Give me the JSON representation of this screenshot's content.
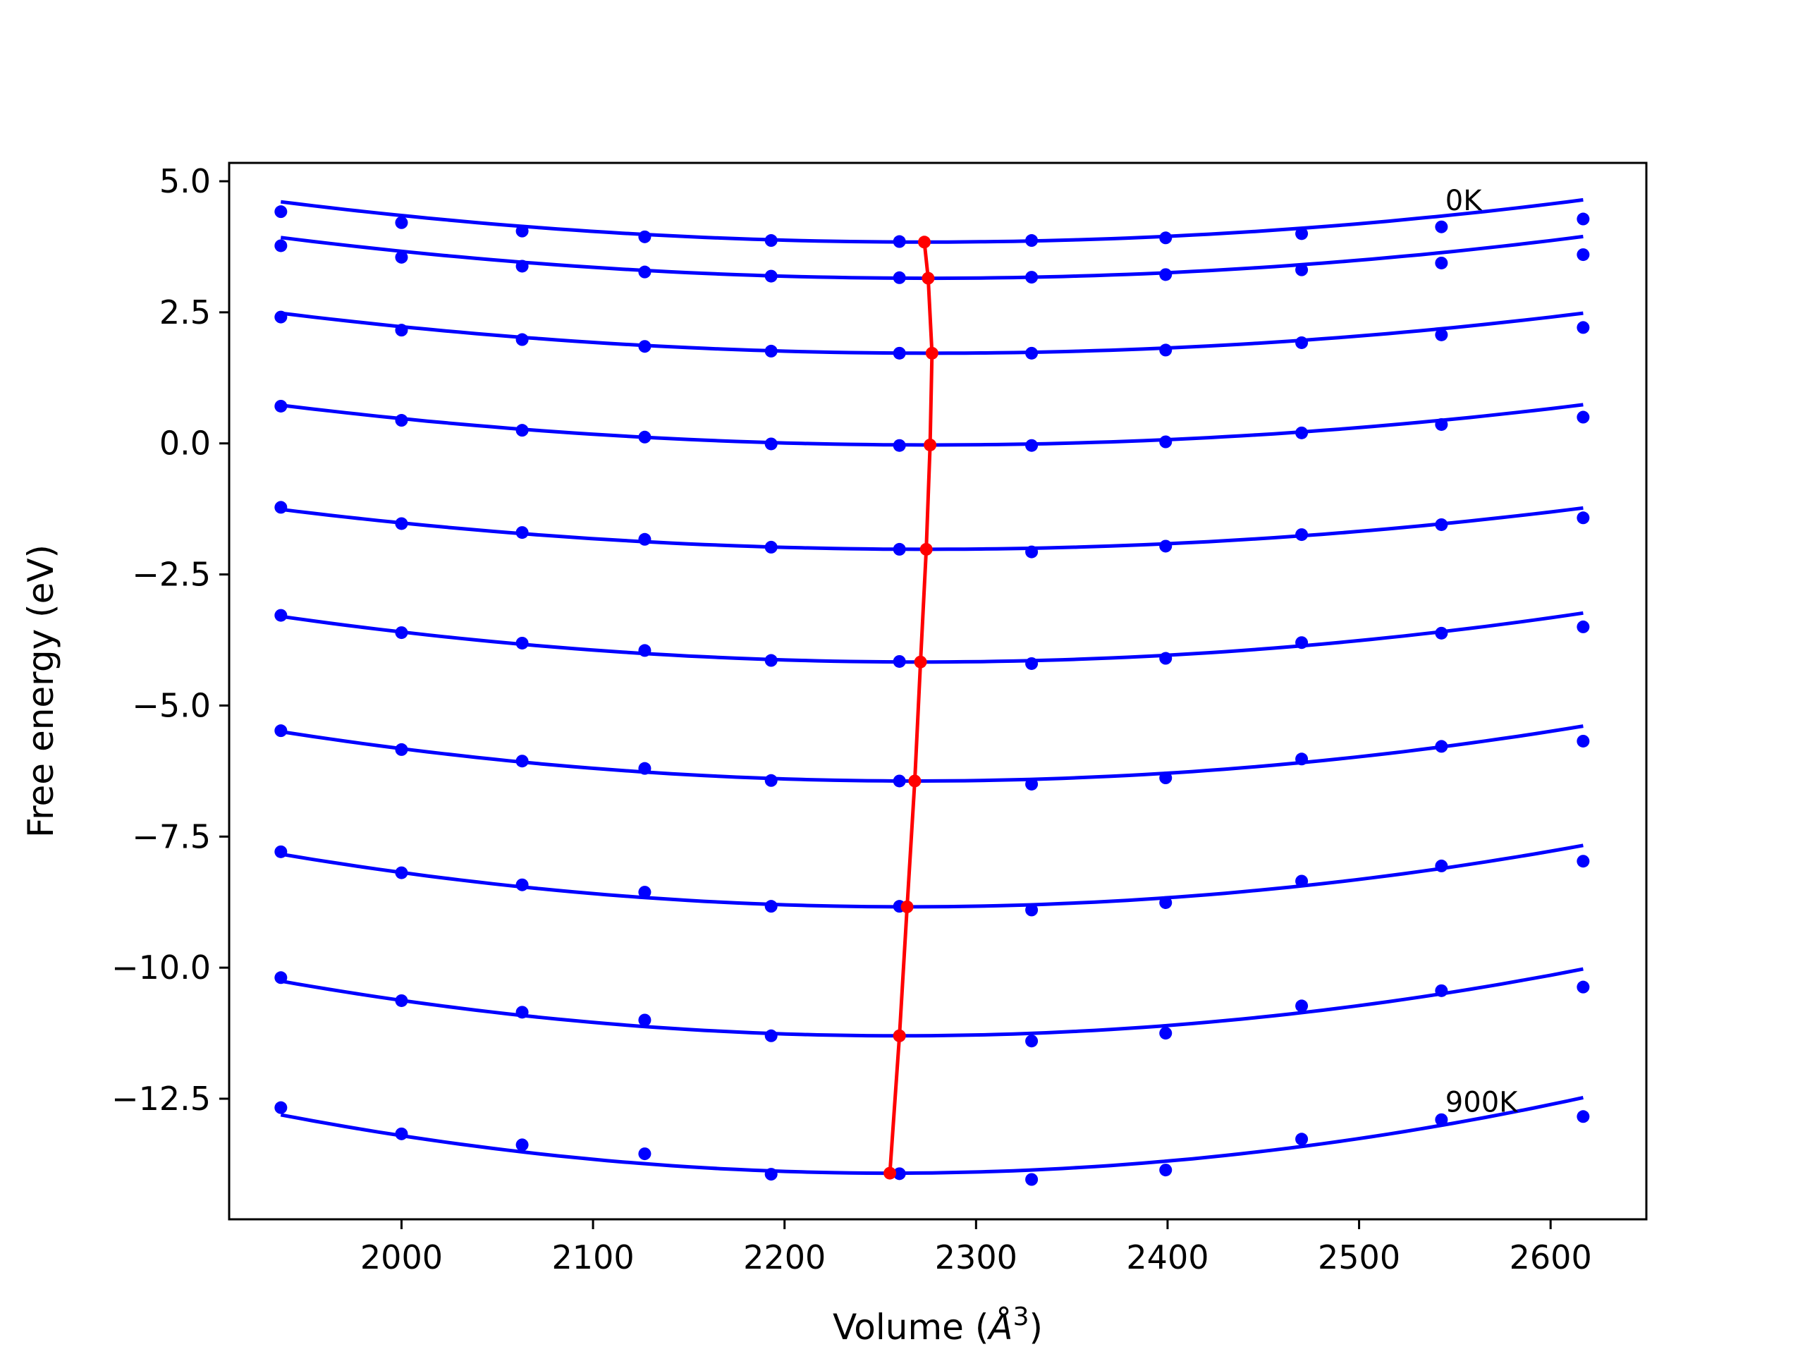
{
  "chart_data": {
    "type": "line",
    "xlabel": "Volume (Å³)",
    "xlabel_parts": {
      "text": "Volume (",
      "symbol": "Å",
      "exp": "3",
      "close": ")"
    },
    "ylabel": "Free energy (eV)",
    "xlim": [
      1910,
      2650
    ],
    "ylim": [
      -14.8,
      5.35
    ],
    "xticks": [
      2000,
      2100,
      2200,
      2300,
      2400,
      2500,
      2600
    ],
    "yticks": [
      5.0,
      2.5,
      0.0,
      -2.5,
      -5.0,
      -7.5,
      -10.0,
      -12.5
    ],
    "ytick_labels": [
      "5.0",
      "2.5",
      "0.0",
      "−2.5",
      "−5.0",
      "−7.5",
      "−10.0",
      "−12.5"
    ],
    "grid": false,
    "colors": {
      "curves": "#0000ff",
      "minima": "#ff0000"
    },
    "annotations": [
      {
        "text": "0K",
        "x": 2545,
        "y": 4.45
      },
      {
        "text": "900K",
        "x": 2545,
        "y": -12.75
      }
    ],
    "x": [
      1937,
      2000,
      2063,
      2127,
      2193,
      2260,
      2329,
      2399,
      2470,
      2543,
      2617
    ],
    "series": [
      {
        "points": [
          4.42,
          4.21,
          4.05,
          3.94,
          3.87,
          3.85,
          3.87,
          3.92,
          4.0,
          4.13,
          4.28
        ],
        "fit": {
          "min_x": 2273,
          "min_y": 3.84,
          "a": 6.8e-06
        }
      },
      {
        "points": [
          3.77,
          3.55,
          3.38,
          3.27,
          3.19,
          3.16,
          3.17,
          3.22,
          3.31,
          3.44,
          3.6
        ],
        "fit": {
          "min_x": 2275,
          "min_y": 3.15,
          "a": 6.8e-06
        }
      },
      {
        "points": [
          2.41,
          2.16,
          1.98,
          1.85,
          1.76,
          1.72,
          1.72,
          1.78,
          1.92,
          2.07,
          2.21
        ],
        "fit": {
          "min_x": 2277,
          "min_y": 1.72,
          "a": 6.6e-06
        }
      },
      {
        "points": [
          0.71,
          0.44,
          0.25,
          0.12,
          -0.01,
          -0.04,
          -0.04,
          0.03,
          0.2,
          0.36,
          0.5
        ],
        "fit": {
          "min_x": 2276,
          "min_y": -0.03,
          "a": 6.6e-06
        }
      },
      {
        "points": [
          -1.22,
          -1.53,
          -1.7,
          -1.83,
          -1.98,
          -2.02,
          -2.07,
          -1.96,
          -1.74,
          -1.55,
          -1.42
        ],
        "fit": {
          "min_x": 2274,
          "min_y": -2.02,
          "a": 6.7e-06
        }
      },
      {
        "points": [
          -3.28,
          -3.61,
          -3.81,
          -3.95,
          -4.14,
          -4.16,
          -4.2,
          -4.1,
          -3.8,
          -3.62,
          -3.5
        ],
        "fit": {
          "min_x": 2271,
          "min_y": -4.17,
          "a": 7.8e-06
        }
      },
      {
        "points": [
          -5.48,
          -5.84,
          -6.06,
          -6.2,
          -6.43,
          -6.44,
          -6.5,
          -6.38,
          -6.02,
          -5.78,
          -5.68
        ],
        "fit": {
          "min_x": 2268,
          "min_y": -6.44,
          "a": 8.6e-06
        }
      },
      {
        "points": [
          -7.79,
          -8.19,
          -8.42,
          -8.56,
          -8.83,
          -8.83,
          -8.9,
          -8.76,
          -8.35,
          -8.06,
          -7.97
        ],
        "fit": {
          "min_x": 2264,
          "min_y": -8.84,
          "a": 9.4e-06
        }
      },
      {
        "points": [
          -10.19,
          -10.63,
          -10.85,
          -11.0,
          -11.3,
          -11.3,
          -11.4,
          -11.25,
          -10.73,
          -10.44,
          -10.37
        ],
        "fit": {
          "min_x": 2260,
          "min_y": -11.3,
          "a": 1e-05
        }
      },
      {
        "points": [
          -12.67,
          -13.17,
          -13.38,
          -13.55,
          -13.94,
          -13.93,
          -14.04,
          -13.86,
          -13.27,
          -12.9,
          -12.84
        ],
        "fit": {
          "min_x": 2255,
          "min_y": -13.92,
          "a": 1.1e-05
        }
      }
    ]
  }
}
